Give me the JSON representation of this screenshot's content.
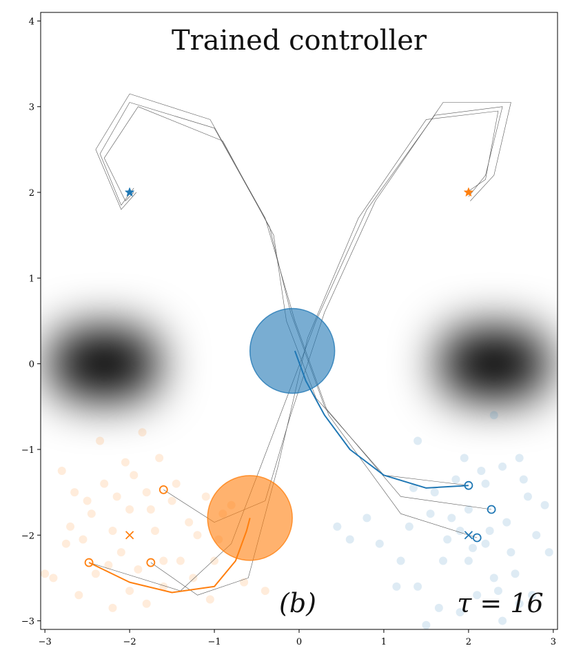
{
  "chart_data": {
    "type": "scatter",
    "title": "Trained controller",
    "xlabel": "",
    "ylabel": "",
    "xlim": [
      -3.05,
      3.05
    ],
    "ylim": [
      -3.1,
      4.1
    ],
    "x_ticks": [
      -3,
      -2,
      -1,
      0,
      1,
      2,
      3
    ],
    "y_ticks": [
      -3,
      -2,
      -1,
      0,
      1,
      2,
      3,
      4
    ],
    "x_tick_labels": [
      "−3",
      "−2",
      "−1",
      "0",
      "1",
      "2",
      "3"
    ],
    "y_tick_labels": [
      "−3",
      "−2",
      "−1",
      "0",
      "1",
      "2",
      "3",
      "4"
    ],
    "grid": false,
    "annotations": {
      "panel": "(b)",
      "tau": "τ = 16"
    },
    "colors": {
      "blue": "#1f77b4",
      "orange": "#ff7f0e",
      "gray_path": "#555555"
    },
    "obstacles": [
      {
        "name": "left-obstacle",
        "center": [
          -2.3,
          0.0
        ],
        "half_width": 1.05,
        "half_height": 0.75
      },
      {
        "name": "right-obstacle",
        "center": [
          2.3,
          0.0
        ],
        "half_width": 1.05,
        "half_height": 0.75
      }
    ],
    "agents": [
      {
        "name": "blue",
        "goal": [
          -2.0,
          2.0
        ],
        "start_mean": [
          2.0,
          -2.0
        ],
        "body": {
          "center": [
            -0.08,
            0.15
          ],
          "radius": 0.5
        },
        "trajectory": [
          [
            2.0,
            -1.42
          ],
          [
            1.5,
            -1.45
          ],
          [
            1.0,
            -1.3
          ],
          [
            0.6,
            -1.0
          ],
          [
            0.3,
            -0.6
          ],
          [
            0.08,
            -0.2
          ],
          [
            -0.05,
            0.15
          ]
        ],
        "gray_paths": [
          [
            [
              2.0,
              -1.42
            ],
            [
              1.0,
              -1.3
            ],
            [
              0.2,
              -0.4
            ],
            [
              -0.15,
              0.5
            ],
            [
              -0.3,
              1.5
            ],
            [
              -0.9,
              2.6
            ],
            [
              -1.9,
              3.0
            ],
            [
              -2.3,
              2.4
            ],
            [
              -2.05,
              1.9
            ],
            [
              -1.95,
              2.0
            ]
          ],
          [
            [
              2.27,
              -1.7
            ],
            [
              1.2,
              -1.55
            ],
            [
              0.3,
              -0.5
            ],
            [
              -0.1,
              0.6
            ],
            [
              -0.35,
              1.6
            ],
            [
              -1.0,
              2.75
            ],
            [
              -2.0,
              3.05
            ],
            [
              -2.35,
              2.45
            ],
            [
              -2.1,
              1.85
            ],
            [
              -1.95,
              2.05
            ]
          ],
          [
            [
              2.1,
              -2.03
            ],
            [
              1.2,
              -1.75
            ],
            [
              0.35,
              -0.6
            ],
            [
              -0.05,
              0.5
            ],
            [
              -0.4,
              1.7
            ],
            [
              -1.05,
              2.85
            ],
            [
              -2.0,
              3.15
            ],
            [
              -2.4,
              2.5
            ],
            [
              -2.1,
              1.8
            ],
            [
              -1.92,
              2.0
            ]
          ]
        ],
        "end_markers": [
          [
            2.0,
            -1.42
          ],
          [
            2.27,
            -1.7
          ],
          [
            2.1,
            -2.03
          ]
        ],
        "samples": [
          [
            1.95,
            -1.1
          ],
          [
            2.2,
            -1.4
          ],
          [
            1.6,
            -1.5
          ],
          [
            2.4,
            -1.2
          ],
          [
            2.6,
            -1.1
          ],
          [
            1.8,
            -1.8
          ],
          [
            1.3,
            -1.9
          ],
          [
            2.0,
            -2.3
          ],
          [
            2.5,
            -2.2
          ],
          [
            2.9,
            -1.65
          ],
          [
            2.3,
            -2.5
          ],
          [
            1.7,
            -2.3
          ],
          [
            1.4,
            -2.6
          ],
          [
            2.1,
            -2.7
          ],
          [
            2.6,
            -2.8
          ],
          [
            1.9,
            -2.9
          ],
          [
            2.4,
            -3.0
          ],
          [
            1.5,
            -3.05
          ],
          [
            2.8,
            -2.0
          ],
          [
            1.2,
            -2.3
          ],
          [
            0.8,
            -1.8
          ],
          [
            0.45,
            -1.9
          ],
          [
            0.6,
            -2.05
          ],
          [
            2.15,
            -1.25
          ],
          [
            1.85,
            -1.35
          ],
          [
            2.7,
            -1.55
          ],
          [
            1.55,
            -1.75
          ],
          [
            2.25,
            -1.95
          ],
          [
            2.05,
            -2.15
          ],
          [
            1.75,
            -2.05
          ],
          [
            2.45,
            -1.85
          ],
          [
            1.35,
            -1.45
          ],
          [
            2.95,
            -2.2
          ],
          [
            1.15,
            -2.6
          ],
          [
            2.35,
            -2.65
          ],
          [
            1.65,
            -2.85
          ],
          [
            2.55,
            -2.45
          ],
          [
            0.95,
            -2.1
          ],
          [
            2.3,
            -0.6
          ],
          [
            1.4,
            -0.9
          ],
          [
            2.0,
            -1.7
          ],
          [
            1.9,
            -1.95
          ],
          [
            2.2,
            -2.1
          ],
          [
            2.65,
            -1.35
          ],
          [
            2.75,
            -2.7
          ]
        ]
      },
      {
        "name": "orange",
        "goal": [
          2.0,
          2.0
        ],
        "start_mean": [
          -2.0,
          -2.0
        ],
        "body": {
          "center": [
            -0.58,
            -1.8
          ],
          "radius": 0.5
        },
        "trajectory": [
          [
            -2.48,
            -2.32
          ],
          [
            -2.0,
            -2.55
          ],
          [
            -1.5,
            -2.67
          ],
          [
            -1.0,
            -2.6
          ],
          [
            -0.75,
            -2.3
          ],
          [
            -0.62,
            -1.95
          ],
          [
            -0.58,
            -1.8
          ]
        ],
        "gray_paths": [
          [
            [
              -2.48,
              -2.32
            ],
            [
              -1.4,
              -2.65
            ],
            [
              -0.8,
              -2.1
            ],
            [
              -0.3,
              -0.8
            ],
            [
              0.2,
              0.5
            ],
            [
              0.8,
              1.8
            ],
            [
              1.6,
              2.9
            ],
            [
              2.4,
              3.0
            ],
            [
              2.2,
              2.2
            ],
            [
              2.0,
              1.95
            ]
          ],
          [
            [
              -1.6,
              -1.47
            ],
            [
              -1.0,
              -1.85
            ],
            [
              -0.4,
              -1.6
            ],
            [
              -0.1,
              -0.6
            ],
            [
              0.3,
              0.6
            ],
            [
              0.9,
              1.9
            ],
            [
              1.7,
              3.05
            ],
            [
              2.5,
              3.05
            ],
            [
              2.3,
              2.2
            ],
            [
              2.02,
              1.9
            ]
          ],
          [
            [
              -1.75,
              -2.32
            ],
            [
              -1.2,
              -2.7
            ],
            [
              -0.6,
              -2.5
            ],
            [
              -0.25,
              -1.2
            ],
            [
              0.1,
              0.3
            ],
            [
              0.7,
              1.7
            ],
            [
              1.5,
              2.85
            ],
            [
              2.35,
              2.95
            ],
            [
              2.2,
              2.15
            ],
            [
              1.98,
              2.0
            ]
          ]
        ],
        "end_markers": [
          [
            -2.48,
            -2.32
          ],
          [
            -1.6,
            -1.47
          ],
          [
            -1.75,
            -2.32
          ]
        ],
        "samples": [
          [
            -2.0,
            -1.7
          ],
          [
            -1.8,
            -1.5
          ],
          [
            -2.3,
            -1.4
          ],
          [
            -1.5,
            -1.6
          ],
          [
            -2.5,
            -1.6
          ],
          [
            -1.3,
            -1.85
          ],
          [
            -2.2,
            -1.95
          ],
          [
            -1.7,
            -1.95
          ],
          [
            -2.7,
            -1.9
          ],
          [
            -2.1,
            -2.2
          ],
          [
            -1.9,
            -2.4
          ],
          [
            -2.4,
            -2.45
          ],
          [
            -1.6,
            -2.3
          ],
          [
            -1.4,
            -2.3
          ],
          [
            -2.9,
            -2.5
          ],
          [
            -2.6,
            -2.7
          ],
          [
            -2.0,
            -2.65
          ],
          [
            -1.8,
            -2.8
          ],
          [
            -2.2,
            -2.85
          ],
          [
            -1.2,
            -2.0
          ],
          [
            -0.9,
            -1.75
          ],
          [
            -1.0,
            -2.3
          ],
          [
            -2.35,
            -0.9
          ],
          [
            -1.85,
            -0.8
          ],
          [
            -2.05,
            -1.15
          ],
          [
            -1.65,
            -1.1
          ],
          [
            -2.8,
            -1.25
          ],
          [
            -1.1,
            -1.55
          ],
          [
            -3.0,
            -2.45
          ],
          [
            -2.75,
            -2.1
          ],
          [
            -2.55,
            -2.05
          ],
          [
            -1.95,
            -1.3
          ],
          [
            -1.45,
            -1.4
          ],
          [
            -0.8,
            -1.65
          ],
          [
            -0.95,
            -2.05
          ],
          [
            -2.45,
            -1.75
          ],
          [
            -1.25,
            -2.5
          ],
          [
            -1.6,
            -2.6
          ],
          [
            -2.15,
            -1.55
          ],
          [
            -1.75,
            -1.7
          ],
          [
            -0.65,
            -2.55
          ],
          [
            -1.05,
            -2.75
          ],
          [
            -2.65,
            -1.5
          ],
          [
            -2.25,
            -2.35
          ],
          [
            -0.4,
            -2.65
          ]
        ]
      }
    ]
  }
}
